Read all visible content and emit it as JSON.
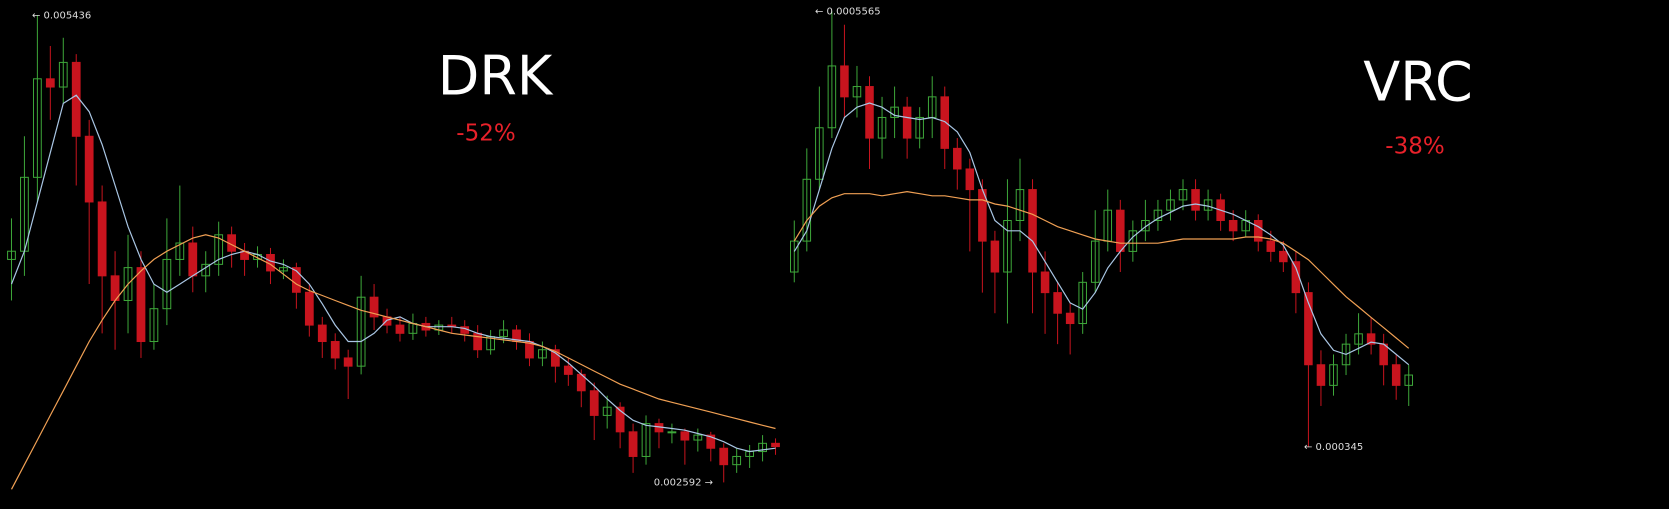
{
  "chart_data": [
    {
      "type": "candlestick",
      "title": "DRK",
      "subtitle": "-52%",
      "up_color": "#3ea83a",
      "down_color": "#c8141e",
      "ylim": [
        0.00243,
        0.00553
      ],
      "open": [
        0.00395,
        0.004,
        0.00445,
        0.00505,
        0.005,
        0.00515,
        0.0047,
        0.0043,
        0.00385,
        0.0037,
        0.0039,
        0.00345,
        0.00365,
        0.00395,
        0.00405,
        0.00385,
        0.00392,
        0.0041,
        0.004,
        0.00395,
        0.00398,
        0.00388,
        0.0039,
        0.00375,
        0.00355,
        0.00345,
        0.00335,
        0.0033,
        0.00372,
        0.0036,
        0.00355,
        0.0035,
        0.00356,
        0.00352,
        0.00355,
        0.00354,
        0.0035,
        0.0034,
        0.00348,
        0.00352,
        0.00345,
        0.00335,
        0.0034,
        0.0033,
        0.00325,
        0.00315,
        0.003,
        0.00305,
        0.0029,
        0.00275,
        0.00295,
        0.0029,
        0.0029,
        0.00285,
        0.00288,
        0.0028,
        0.0027,
        0.00275,
        0.00278,
        0.00283
      ],
      "high": [
        0.0042,
        0.0047,
        0.005436,
        0.00525,
        0.0053,
        0.0052,
        0.0048,
        0.0044,
        0.004,
        0.0041,
        0.004,
        0.0038,
        0.0042,
        0.0044,
        0.00415,
        0.004,
        0.00418,
        0.00415,
        0.00405,
        0.00403,
        0.00402,
        0.00395,
        0.00393,
        0.0038,
        0.0036,
        0.0035,
        0.0034,
        0.00385,
        0.0038,
        0.00365,
        0.0036,
        0.00362,
        0.0036,
        0.00358,
        0.0036,
        0.00358,
        0.00355,
        0.00352,
        0.00358,
        0.00355,
        0.0035,
        0.00345,
        0.00343,
        0.00335,
        0.00328,
        0.0032,
        0.00312,
        0.00308,
        0.00295,
        0.003,
        0.00298,
        0.00295,
        0.00292,
        0.00292,
        0.0029,
        0.00283,
        0.0028,
        0.00282,
        0.00288,
        0.00286
      ],
      "low": [
        0.0037,
        0.00385,
        0.0043,
        0.0048,
        0.0049,
        0.0044,
        0.0038,
        0.0035,
        0.0034,
        0.0035,
        0.00335,
        0.0034,
        0.00355,
        0.00385,
        0.00375,
        0.00375,
        0.00385,
        0.0039,
        0.00385,
        0.0039,
        0.0038,
        0.00383,
        0.00365,
        0.00348,
        0.00335,
        0.00328,
        0.0031,
        0.00325,
        0.00352,
        0.0035,
        0.00345,
        0.00346,
        0.00348,
        0.00349,
        0.0035,
        0.00345,
        0.00335,
        0.00337,
        0.00344,
        0.0034,
        0.0033,
        0.0033,
        0.0032,
        0.00318,
        0.00305,
        0.00285,
        0.00292,
        0.0028,
        0.00265,
        0.0027,
        0.0028,
        0.00283,
        0.0027,
        0.00278,
        0.00272,
        0.002592,
        0.00265,
        0.00268,
        0.00272,
        0.00276
      ],
      "close": [
        0.004,
        0.00445,
        0.00505,
        0.005,
        0.00515,
        0.0047,
        0.0043,
        0.00385,
        0.0037,
        0.0039,
        0.00345,
        0.00365,
        0.00395,
        0.00405,
        0.00385,
        0.00392,
        0.0041,
        0.004,
        0.00395,
        0.00398,
        0.00388,
        0.0039,
        0.00375,
        0.00355,
        0.00345,
        0.00335,
        0.0033,
        0.00372,
        0.0036,
        0.00355,
        0.0035,
        0.00356,
        0.00352,
        0.00355,
        0.00354,
        0.0035,
        0.0034,
        0.00348,
        0.00352,
        0.00345,
        0.00335,
        0.0034,
        0.0033,
        0.00325,
        0.00315,
        0.003,
        0.00305,
        0.0029,
        0.00275,
        0.00295,
        0.0029,
        0.0029,
        0.00285,
        0.00288,
        0.0028,
        0.0027,
        0.00275,
        0.00278,
        0.00283,
        0.00281
      ],
      "lines": [
        {
          "color": "#a9c6e4",
          "values": [
            0.0038,
            0.004,
            0.0043,
            0.0046,
            0.0049,
            0.00495,
            0.00485,
            0.00465,
            0.0044,
            0.00415,
            0.00395,
            0.0038,
            0.00375,
            0.0038,
            0.00385,
            0.0039,
            0.00395,
            0.00398,
            0.004,
            0.00398,
            0.00394,
            0.00392,
            0.00388,
            0.0038,
            0.00368,
            0.00355,
            0.00345,
            0.00345,
            0.0035,
            0.00358,
            0.0036,
            0.00356,
            0.00354,
            0.00354,
            0.00354,
            0.00353,
            0.0035,
            0.00348,
            0.00347,
            0.00346,
            0.00345,
            0.00342,
            0.00338,
            0.00332,
            0.00325,
            0.00318,
            0.0031,
            0.00303,
            0.00297,
            0.00294,
            0.00293,
            0.00292,
            0.00291,
            0.00289,
            0.00287,
            0.00284,
            0.0028,
            0.00278,
            0.00279,
            0.0028
          ]
        },
        {
          "color": "#f0a054",
          "values": [
            0.00255,
            0.0027,
            0.00285,
            0.003,
            0.00315,
            0.0033,
            0.00345,
            0.00358,
            0.0037,
            0.0038,
            0.00388,
            0.00395,
            0.004,
            0.00404,
            0.00408,
            0.0041,
            0.00408,
            0.00404,
            0.004,
            0.00396,
            0.00392,
            0.00386,
            0.0038,
            0.00376,
            0.00373,
            0.0037,
            0.00367,
            0.00364,
            0.00362,
            0.0036,
            0.00358,
            0.00356,
            0.00354,
            0.00352,
            0.0035,
            0.00349,
            0.00348,
            0.00347,
            0.00346,
            0.00345,
            0.00344,
            0.00342,
            0.00339,
            0.00335,
            0.00331,
            0.00327,
            0.00323,
            0.00319,
            0.00316,
            0.00313,
            0.0031,
            0.00308,
            0.00306,
            0.00304,
            0.00302,
            0.003,
            0.00298,
            0.00296,
            0.00294,
            0.00292
          ]
        }
      ],
      "annotations": [
        {
          "label": "← 0.005436",
          "value": 0.005436
        },
        {
          "label": "0.002592 →",
          "value": 0.002592
        }
      ]
    },
    {
      "type": "candlestick",
      "title": "VRC",
      "subtitle": "-38%",
      "up_color": "#3ea83a",
      "down_color": "#c8141e",
      "ylim": [
        0.000315,
        0.000562
      ],
      "open": [
        0.00043,
        0.000445,
        0.000475,
        0.0005,
        0.00053,
        0.000515,
        0.00052,
        0.000495,
        0.000505,
        0.00051,
        0.000495,
        0.000505,
        0.000515,
        0.00049,
        0.00048,
        0.00047,
        0.000445,
        0.00043,
        0.000455,
        0.00047,
        0.00043,
        0.00042,
        0.00041,
        0.000405,
        0.000425,
        0.000445,
        0.00046,
        0.00044,
        0.00045,
        0.000455,
        0.00046,
        0.000465,
        0.00047,
        0.00046,
        0.000465,
        0.000455,
        0.00045,
        0.000455,
        0.000445,
        0.00044,
        0.000435,
        0.00042,
        0.000385,
        0.000375,
        0.000385,
        0.000395,
        0.0004,
        0.000395,
        0.000385,
        0.000375
      ],
      "high": [
        0.000455,
        0.00049,
        0.00052,
        0.0005565,
        0.00055,
        0.00053,
        0.000525,
        0.000515,
        0.00052,
        0.000515,
        0.00051,
        0.000525,
        0.00052,
        0.000495,
        0.000485,
        0.000475,
        0.00045,
        0.000475,
        0.000485,
        0.000475,
        0.00044,
        0.000425,
        0.000415,
        0.00043,
        0.00046,
        0.00047,
        0.000465,
        0.000455,
        0.000465,
        0.000465,
        0.00047,
        0.000475,
        0.000475,
        0.00047,
        0.000468,
        0.00046,
        0.00046,
        0.000458,
        0.00045,
        0.000445,
        0.00044,
        0.000425,
        0.000392,
        0.00039,
        0.0004,
        0.00041,
        0.000408,
        0.0004,
        0.00039,
        0.000385
      ],
      "low": [
        0.000425,
        0.00044,
        0.00047,
        0.000495,
        0.000505,
        0.000505,
        0.00048,
        0.000485,
        0.000495,
        0.000485,
        0.00049,
        0.000495,
        0.00048,
        0.00047,
        0.00044,
        0.00042,
        0.00041,
        0.000405,
        0.000445,
        0.00041,
        0.0004,
        0.000395,
        0.00039,
        0.0004,
        0.00042,
        0.00044,
        0.00043,
        0.000435,
        0.000445,
        0.00045,
        0.000455,
        0.00046,
        0.000455,
        0.000455,
        0.00045,
        0.000445,
        0.000447,
        0.00044,
        0.000435,
        0.00043,
        0.00041,
        0.000345,
        0.000365,
        0.00037,
        0.00038,
        0.00039,
        0.00039,
        0.000375,
        0.000368,
        0.000365
      ],
      "close": [
        0.000445,
        0.000475,
        0.0005,
        0.00053,
        0.000515,
        0.00052,
        0.000495,
        0.000505,
        0.00051,
        0.000495,
        0.000505,
        0.000515,
        0.00049,
        0.00048,
        0.00047,
        0.000445,
        0.00043,
        0.000455,
        0.00047,
        0.00043,
        0.00042,
        0.00041,
        0.000405,
        0.000425,
        0.000445,
        0.00046,
        0.00044,
        0.00045,
        0.000455,
        0.00046,
        0.000465,
        0.00047,
        0.00046,
        0.000465,
        0.000455,
        0.00045,
        0.000455,
        0.000445,
        0.00044,
        0.000435,
        0.00042,
        0.000385,
        0.000375,
        0.000385,
        0.000395,
        0.0004,
        0.000395,
        0.000385,
        0.000375,
        0.00038
      ],
      "lines": [
        {
          "color": "#a9c6e4",
          "values": [
            0.00044,
            0.00045,
            0.00047,
            0.00049,
            0.000505,
            0.00051,
            0.000512,
            0.00051,
            0.000506,
            0.000505,
            0.000504,
            0.000505,
            0.000503,
            0.000498,
            0.000488,
            0.00047,
            0.000455,
            0.00045,
            0.00045,
            0.000445,
            0.000435,
            0.000425,
            0.000415,
            0.000412,
            0.00042,
            0.000432,
            0.00044,
            0.000447,
            0.000452,
            0.000456,
            0.000459,
            0.000462,
            0.000463,
            0.000462,
            0.00046,
            0.000458,
            0.000455,
            0.000452,
            0.000448,
            0.000443,
            0.000432,
            0.000415,
            0.0004,
            0.000392,
            0.00039,
            0.000393,
            0.000396,
            0.000395,
            0.00039,
            0.000385
          ]
        },
        {
          "color": "#f0a054",
          "values": [
            0.000445,
            0.000455,
            0.000462,
            0.000466,
            0.000468,
            0.000468,
            0.000468,
            0.000467,
            0.000468,
            0.000469,
            0.000468,
            0.000467,
            0.000467,
            0.000466,
            0.000465,
            0.000465,
            0.000463,
            0.000462,
            0.00046,
            0.000458,
            0.000455,
            0.000452,
            0.00045,
            0.000448,
            0.000446,
            0.000445,
            0.000444,
            0.000444,
            0.000444,
            0.000444,
            0.000445,
            0.000446,
            0.000446,
            0.000446,
            0.000446,
            0.000446,
            0.000447,
            0.000447,
            0.000446,
            0.000444,
            0.00044,
            0.000436,
            0.00043,
            0.000424,
            0.000418,
            0.000413,
            0.000408,
            0.000403,
            0.000398,
            0.000393
          ]
        }
      ],
      "annotations": [
        {
          "label": "← 0.0005565",
          "value": 0.0005565
        },
        {
          "label": "← 0.000345",
          "value": 0.000345
        }
      ]
    }
  ]
}
